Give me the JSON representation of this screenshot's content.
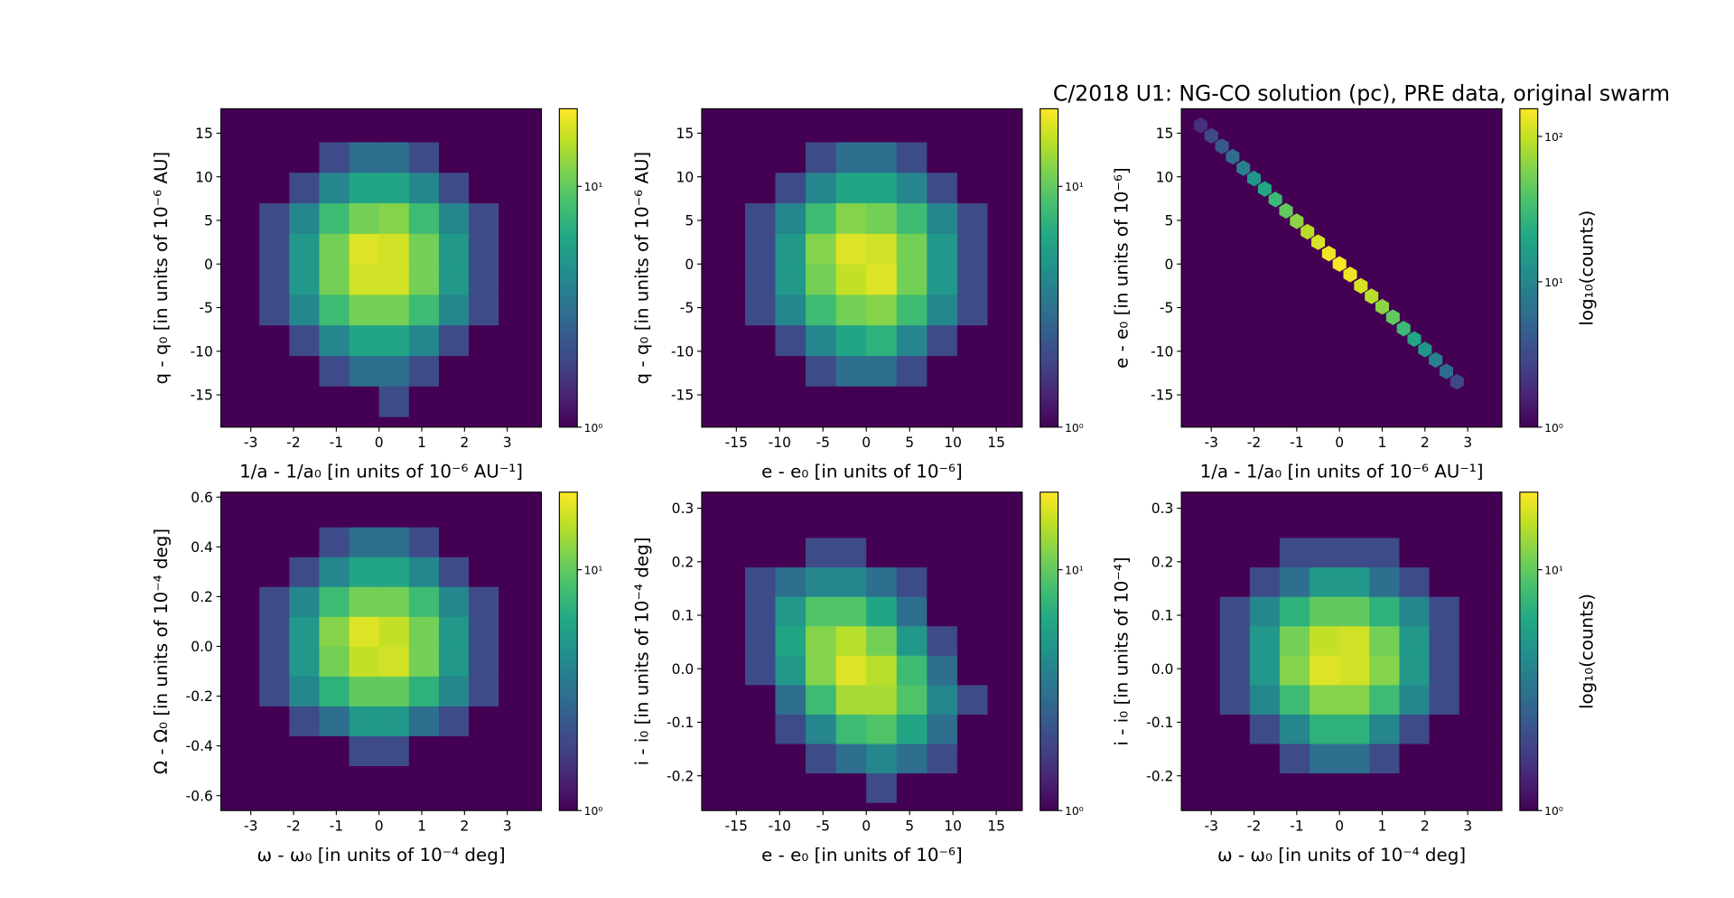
{
  "chart_data": [
    {
      "type": "hist2d",
      "xlabel": "1/a - 1/a₀ [in units of 10⁻⁶ AU⁻¹]",
      "ylabel": "q - q₀ [in units of 10⁻⁶ AU]",
      "xlim": [
        -3.7,
        3.8
      ],
      "ylim": [
        -18.7,
        17.8
      ],
      "xticks": [
        -3,
        -2,
        -1,
        0,
        1,
        2,
        3
      ],
      "yticks": [
        -15,
        -10,
        -5,
        0,
        5,
        10,
        15
      ],
      "xbins": [
        -3.5,
        -2.8,
        -2.1,
        -1.4,
        -0.7,
        0,
        0.7,
        1.4,
        2.1,
        2.8,
        3.5
      ],
      "ybins": [
        -17.5,
        -14,
        -10.5,
        -7,
        -3.5,
        0,
        3.5,
        7,
        10.5,
        14,
        17.5
      ],
      "values": [
        [
          0,
          0,
          1,
          1,
          1,
          2,
          1,
          1,
          0,
          0
        ],
        [
          0,
          1,
          1,
          2,
          3,
          3,
          2,
          1,
          1,
          0
        ],
        [
          1,
          1,
          2,
          4,
          6,
          6,
          4,
          2,
          1,
          0
        ],
        [
          1,
          2,
          4,
          8,
          11,
          11,
          8,
          4,
          2,
          1
        ],
        [
          1,
          2,
          5,
          11,
          17,
          17,
          11,
          5,
          2,
          1
        ],
        [
          1,
          2,
          5,
          11,
          18,
          17,
          11,
          5,
          2,
          1
        ],
        [
          1,
          2,
          4,
          8,
          11,
          12,
          8,
          4,
          2,
          1
        ],
        [
          0,
          1,
          2,
          4,
          6,
          6,
          4,
          2,
          1,
          1
        ],
        [
          0,
          1,
          1,
          2,
          3,
          3,
          2,
          1,
          1,
          0
        ],
        [
          0,
          0,
          1,
          1,
          1,
          1,
          1,
          0,
          0,
          0
        ]
      ],
      "colormap": "viridis",
      "colorbar": {
        "scale": "log",
        "lim": [
          1,
          21
        ],
        "ticks": [
          {
            "value": 1,
            "label": "10⁰"
          },
          {
            "value": 10,
            "label": "10¹"
          }
        ]
      }
    },
    {
      "type": "hist2d",
      "xlabel": "e - e₀ [in units of 10⁻⁶]",
      "ylabel": "q - q₀ [in units of 10⁻⁶ AU]",
      "xlim": [
        -19,
        18
      ],
      "ylim": [
        -18.7,
        17.8
      ],
      "xticks": [
        -15,
        -10,
        -5,
        0,
        5,
        10,
        15
      ],
      "yticks": [
        -15,
        -10,
        -5,
        0,
        5,
        10,
        15
      ],
      "xbins": [
        -17.5,
        -14,
        -10.5,
        -7,
        -3.5,
        0,
        3.5,
        7,
        10.5,
        14,
        17.5
      ],
      "ybins": [
        -17.5,
        -14,
        -10.5,
        -7,
        -3.5,
        0,
        3.5,
        7,
        10.5,
        14,
        17.5
      ],
      "values": [
        [
          0,
          0,
          1,
          1,
          1,
          1,
          1,
          1,
          0,
          0
        ],
        [
          0,
          1,
          1,
          2,
          3,
          3,
          2,
          1,
          1,
          0
        ],
        [
          1,
          1,
          2,
          4,
          6,
          7,
          4,
          2,
          1,
          0
        ],
        [
          1,
          2,
          4,
          8,
          11,
          12,
          8,
          4,
          2,
          1
        ],
        [
          1,
          2,
          5,
          11,
          16,
          18,
          11,
          5,
          2,
          1
        ],
        [
          1,
          2,
          5,
          12,
          18,
          17,
          11,
          5,
          2,
          1
        ],
        [
          1,
          2,
          4,
          8,
          12,
          11,
          8,
          4,
          2,
          1
        ],
        [
          0,
          1,
          2,
          4,
          6,
          6,
          4,
          2,
          1,
          1
        ],
        [
          0,
          1,
          1,
          2,
          3,
          3,
          2,
          1,
          1,
          0
        ],
        [
          0,
          0,
          1,
          1,
          1,
          1,
          1,
          0,
          0,
          0
        ]
      ],
      "colormap": "viridis",
      "colorbar": {
        "scale": "log",
        "lim": [
          1,
          21
        ],
        "ticks": [
          {
            "value": 1,
            "label": "10⁰"
          },
          {
            "value": 10,
            "label": "10¹"
          }
        ]
      }
    },
    {
      "type": "hexbin",
      "title": "C/2018 U1: NG-CO solution (pc), PRE data, original swarm",
      "xlabel": "1/a - 1/a₀ [in units of 10⁻⁶ AU⁻¹]",
      "ylabel": "e - e₀ [in units of 10⁻⁶]",
      "xlim": [
        -3.7,
        3.8
      ],
      "ylim": [
        -18.7,
        17.8
      ],
      "xticks": [
        -3,
        -2,
        -1,
        0,
        1,
        2,
        3
      ],
      "yticks": [
        -15,
        -10,
        -5,
        0,
        5,
        10,
        15
      ],
      "x": [
        -3.25,
        -3,
        -2.75,
        -2.5,
        -2.25,
        -2,
        -1.75,
        -1.5,
        -1.25,
        -1,
        -0.75,
        -0.5,
        -0.25,
        0,
        0.25,
        0.5,
        0.75,
        1,
        1.25,
        1.5,
        1.75,
        2,
        2.25,
        2.5,
        2.75
      ],
      "y": [
        15.9,
        14.7,
        13.5,
        12.3,
        11,
        9.8,
        8.6,
        7.4,
        6.1,
        4.9,
        3.7,
        2.5,
        1.2,
        0,
        -1.2,
        -2.5,
        -3.7,
        -4.9,
        -6.1,
        -7.4,
        -8.6,
        -9.8,
        -11,
        -12.3,
        -13.5
      ],
      "values": [
        2,
        3,
        4,
        6,
        9,
        14,
        20,
        30,
        45,
        65,
        90,
        115,
        140,
        150,
        140,
        115,
        90,
        65,
        45,
        30,
        20,
        14,
        9,
        6,
        3
      ],
      "colormap": "viridis",
      "colorbar": {
        "scale": "log",
        "lim": [
          1,
          155
        ],
        "ticks": [
          {
            "value": 1,
            "label": "10⁰"
          },
          {
            "value": 10,
            "label": "10¹"
          },
          {
            "value": 100,
            "label": "10²"
          }
        ],
        "label": "log₁₀(counts)"
      }
    },
    {
      "type": "hist2d",
      "xlabel": "ω - ω₀ [in units of 10⁻⁴ deg]",
      "ylabel": "Ω - Ω₀ [in units of 10⁻⁴ deg]",
      "xlim": [
        -3.7,
        3.8
      ],
      "ylim": [
        -0.66,
        0.62
      ],
      "xticks": [
        -3,
        -2,
        -1,
        0,
        1,
        2,
        3
      ],
      "yticks": [
        -0.6,
        -0.4,
        -0.2,
        {
          "value": 0,
          "label": "0.0"
        },
        0.2,
        0.4,
        0.6
      ],
      "xbins": [
        -3.5,
        -2.8,
        -2.1,
        -1.4,
        -0.7,
        0,
        0.7,
        1.4,
        2.1,
        2.8,
        3.5
      ],
      "ybins": [
        -0.6,
        -0.48,
        -0.36,
        -0.24,
        -0.12,
        0,
        0.12,
        0.24,
        0.36,
        0.48,
        0.6
      ],
      "values": [
        [
          0,
          0,
          0,
          1,
          1,
          1,
          1,
          0,
          0,
          0
        ],
        [
          0,
          0,
          1,
          1,
          2,
          2,
          1,
          1,
          0,
          0
        ],
        [
          0,
          1,
          2,
          3,
          5,
          5,
          3,
          2,
          1,
          0
        ],
        [
          1,
          2,
          4,
          7,
          10,
          10,
          7,
          4,
          2,
          1
        ],
        [
          1,
          2,
          5,
          11,
          16,
          17,
          11,
          5,
          2,
          1
        ],
        [
          1,
          2,
          5,
          12,
          18,
          16,
          11,
          5,
          2,
          1
        ],
        [
          1,
          2,
          4,
          8,
          11,
          11,
          8,
          4,
          2,
          1
        ],
        [
          0,
          1,
          2,
          4,
          6,
          6,
          4,
          2,
          1,
          0
        ],
        [
          0,
          1,
          1,
          2,
          3,
          3,
          2,
          1,
          0,
          0
        ],
        [
          0,
          0,
          0,
          1,
          1,
          1,
          1,
          0,
          0,
          0
        ]
      ],
      "colormap": "viridis",
      "colorbar": {
        "scale": "log",
        "lim": [
          1,
          21
        ],
        "ticks": [
          {
            "value": 1,
            "label": "10⁰"
          },
          {
            "value": 10,
            "label": "10¹"
          }
        ]
      }
    },
    {
      "type": "hist2d",
      "xlabel": "e - e₀ [in units of 10⁻⁶]",
      "ylabel": "i - i₀ [in units of 10⁻⁴ deg]",
      "xlim": [
        -19,
        18
      ],
      "ylim": [
        -0.265,
        0.33
      ],
      "xticks": [
        -15,
        -10,
        -5,
        0,
        5,
        10,
        15
      ],
      "yticks": [
        -0.2,
        -0.1,
        {
          "value": 0,
          "label": "0.0"
        },
        0.1,
        0.2,
        0.3
      ],
      "xbins": [
        -17.5,
        -14,
        -10.5,
        -7,
        -3.5,
        0,
        3.5,
        7,
        10.5,
        14,
        17.5
      ],
      "ybins": [
        -0.25,
        -0.195,
        -0.14,
        -0.085,
        -0.03,
        0.025,
        0.08,
        0.135,
        0.19,
        0.245,
        0.3
      ],
      "values": [
        [
          0,
          0,
          0,
          1,
          1,
          2,
          1,
          1,
          0,
          0
        ],
        [
          0,
          0,
          1,
          2,
          3,
          4,
          3,
          2,
          1,
          0
        ],
        [
          0,
          1,
          2,
          4,
          8,
          9,
          6,
          3,
          1,
          1
        ],
        [
          1,
          1,
          3,
          8,
          14,
          14,
          9,
          4,
          2,
          1
        ],
        [
          1,
          2,
          5,
          12,
          18,
          15,
          8,
          3,
          1,
          1
        ],
        [
          1,
          2,
          6,
          12,
          15,
          11,
          5,
          2,
          1,
          0
        ],
        [
          1,
          2,
          5,
          9,
          9,
          6,
          3,
          1,
          1,
          0
        ],
        [
          1,
          2,
          3,
          4,
          4,
          3,
          2,
          1,
          0,
          0
        ],
        [
          0,
          1,
          1,
          2,
          2,
          1,
          1,
          0,
          0,
          0
        ],
        [
          0,
          0,
          1,
          1,
          1,
          1,
          0,
          0,
          0,
          0
        ]
      ],
      "colormap": "viridis",
      "colorbar": {
        "scale": "log",
        "lim": [
          1,
          21
        ],
        "ticks": [
          {
            "value": 1,
            "label": "10⁰"
          },
          {
            "value": 10,
            "label": "10¹"
          }
        ]
      }
    },
    {
      "type": "hist2d",
      "xlabel": "ω - ω₀ [in units of 10⁻⁴ deg]",
      "ylabel": "i - i₀ [in units of 10⁻⁴]",
      "xlim": [
        -3.7,
        3.8
      ],
      "ylim": [
        -0.265,
        0.33
      ],
      "xticks": [
        -3,
        -2,
        -1,
        0,
        1,
        2,
        3
      ],
      "yticks": [
        -0.2,
        -0.1,
        {
          "value": 0,
          "label": "0.0"
        },
        0.1,
        0.2,
        0.3
      ],
      "xbins": [
        -3.5,
        -2.8,
        -2.1,
        -1.4,
        -0.7,
        0,
        0.7,
        1.4,
        2.1,
        2.8,
        3.5
      ],
      "ybins": [
        -0.25,
        -0.195,
        -0.14,
        -0.085,
        -0.03,
        0.025,
        0.08,
        0.135,
        0.19,
        0.245,
        0.3
      ],
      "values": [
        [
          0,
          0,
          0,
          1,
          1,
          1,
          1,
          0,
          0,
          0
        ],
        [
          0,
          0,
          1,
          2,
          3,
          3,
          2,
          1,
          0,
          0
        ],
        [
          0,
          1,
          2,
          4,
          7,
          7,
          4,
          2,
          1,
          0
        ],
        [
          1,
          2,
          4,
          8,
          12,
          12,
          8,
          4,
          2,
          1
        ],
        [
          1,
          2,
          5,
          12,
          18,
          17,
          12,
          5,
          2,
          1
        ],
        [
          1,
          2,
          5,
          11,
          16,
          17,
          11,
          5,
          2,
          1
        ],
        [
          1,
          2,
          4,
          7,
          10,
          10,
          7,
          4,
          2,
          1
        ],
        [
          0,
          1,
          2,
          3,
          5,
          5,
          3,
          2,
          1,
          0
        ],
        [
          0,
          0,
          1,
          2,
          2,
          2,
          2,
          1,
          0,
          0
        ],
        [
          0,
          0,
          0,
          1,
          1,
          1,
          1,
          0,
          0,
          0
        ]
      ],
      "colormap": "viridis",
      "colorbar": {
        "scale": "log",
        "lim": [
          1,
          21
        ],
        "ticks": [
          {
            "value": 1,
            "label": "10⁰"
          },
          {
            "value": 10,
            "label": "10¹"
          }
        ],
        "label": "log₁₀(counts)"
      }
    }
  ]
}
